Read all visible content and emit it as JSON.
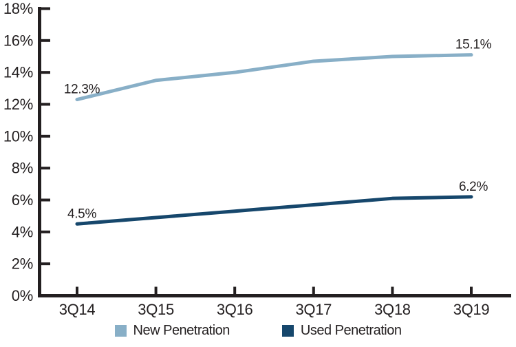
{
  "chart_data": {
    "type": "line",
    "categories": [
      "3Q14",
      "3Q15",
      "3Q16",
      "3Q17",
      "3Q18",
      "3Q19"
    ],
    "series": [
      {
        "name": "New Penetration",
        "color": "#88afc7",
        "values": [
          12.3,
          13.5,
          14.0,
          14.7,
          15.0,
          15.1
        ]
      },
      {
        "name": "Used Penetration",
        "color": "#16476c",
        "values": [
          4.5,
          4.9,
          5.3,
          5.7,
          6.1,
          6.2
        ]
      }
    ],
    "point_labels": [
      {
        "series": 0,
        "index": 0,
        "text": "12.3%"
      },
      {
        "series": 0,
        "index": 5,
        "text": "15.1%"
      },
      {
        "series": 1,
        "index": 0,
        "text": "4.5%"
      },
      {
        "series": 1,
        "index": 5,
        "text": "6.2%"
      }
    ],
    "title": "",
    "xlabel": "",
    "ylabel": "",
    "ylim": [
      0,
      18
    ],
    "ytick_step": 2,
    "ytick_labels": [
      "0%",
      "2%",
      "4%",
      "6%",
      "8%",
      "10%",
      "12%",
      "14%",
      "16%",
      "18%"
    ],
    "grid": false,
    "legend_position": "bottom",
    "axis_color": "#231f20",
    "text_color": "#231f20",
    "background": "#ffffff"
  }
}
